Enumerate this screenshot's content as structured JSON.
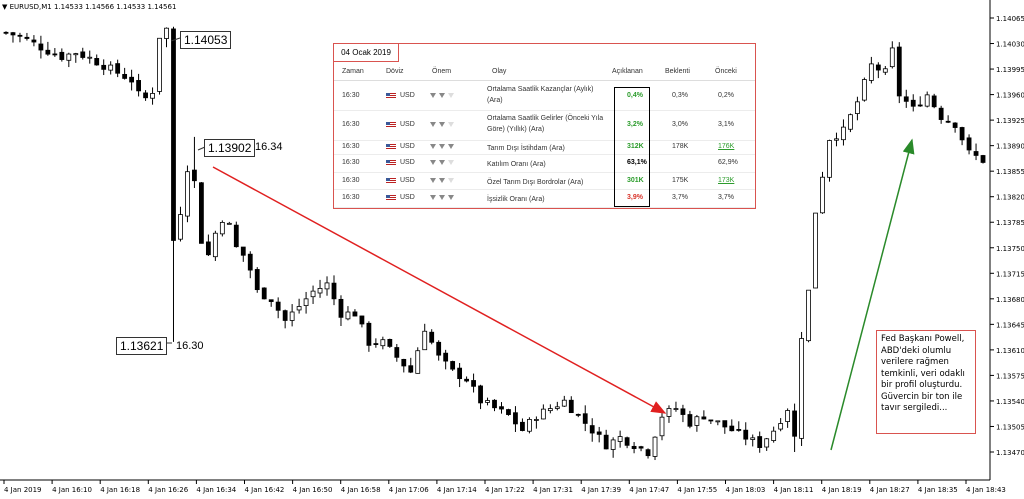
{
  "header": {
    "symbol": "EURUSD,M1",
    "ohlc": "1.14533 1.14566 1.14533 1.14561"
  },
  "annotations": {
    "high_price": "1.14053",
    "mid_price": "1.13902",
    "mid_time": "16.34",
    "low_price": "1.13621",
    "low_time": "16.30"
  },
  "calendar": {
    "date": "04 Ocak 2019",
    "headers": {
      "time": "Zaman",
      "currency": "Döviz",
      "importance": "Önem",
      "event": "Olay",
      "actual": "Açıklanan",
      "forecast": "Beklenti",
      "previous": "Önceki"
    },
    "rows": [
      {
        "time": "16:30",
        "currency": "USD",
        "importance": 2,
        "event": "Ortalama Saatlik Kazançlar (Aylık) (Ara)",
        "actual": "0,4%",
        "actual_style": "green",
        "forecast": "0,3%",
        "previous": "0,2%",
        "previous_style": "normal"
      },
      {
        "time": "16:30",
        "currency": "USD",
        "importance": 2,
        "event": "Ortalama Saatlik Gelirler (Önceki Yıla Göre) (Yıllık) (Ara)",
        "actual": "3,2%",
        "actual_style": "green",
        "forecast": "3,0%",
        "previous": "3,1%",
        "previous_style": "normal"
      },
      {
        "time": "16:30",
        "currency": "USD",
        "importance": 3,
        "event": "Tarım Dışı İstihdam (Ara)",
        "actual": "312K",
        "actual_style": "green",
        "forecast": "178K",
        "previous": "176K",
        "previous_style": "green-underline"
      },
      {
        "time": "16:30",
        "currency": "USD",
        "importance": 2,
        "event": "Katılım Oranı (Ara)",
        "actual": "63,1%",
        "actual_style": "black",
        "forecast": "",
        "previous": "62,9%",
        "previous_style": "normal"
      },
      {
        "time": "16:30",
        "currency": "USD",
        "importance": 2,
        "event": "Özel Tarım Dışı Bordrolar (Ara)",
        "actual": "301K",
        "actual_style": "green",
        "forecast": "175K",
        "previous": "173K",
        "previous_style": "green-underline"
      },
      {
        "time": "16:30",
        "currency": "USD",
        "importance": 3,
        "event": "İşsizlik Oranı (Ara)",
        "actual": "3,9%",
        "actual_style": "red",
        "forecast": "3,7%",
        "previous": "3,7%",
        "previous_style": "normal"
      }
    ]
  },
  "note": "Fed Başkanı Powell, ABD'deki olumlu verilere rağmen temkinli, veri odaklı bir profil oluşturdu. Güvercin bir ton ile tavır sergiledi...",
  "colors": {
    "down_arrow": "#e02020",
    "up_arrow": "#2a8a2a",
    "bull": "#ffffff",
    "bear": "#000000"
  },
  "chart_data": {
    "type": "candlestick",
    "ylim": [
      1.1344,
      1.1409
    ],
    "yticks": [
      "1.14065",
      "1.14030",
      "1.13995",
      "1.13960",
      "1.13925",
      "1.13890",
      "1.13855",
      "1.13820",
      "1.13785",
      "1.13750",
      "1.13715",
      "1.13680",
      "1.13645",
      "1.13610",
      "1.13575",
      "1.13540",
      "1.13505",
      "1.13470"
    ],
    "xticks": [
      "4 Jan 2019",
      "4 Jan 16:10",
      "4 Jan 16:18",
      "4 Jan 16:26",
      "4 Jan 16:34",
      "4 Jan 16:42",
      "4 Jan 16:50",
      "4 Jan 16:58",
      "4 Jan 17:06",
      "4 Jan 17:14",
      "4 Jan 17:22",
      "4 Jan 17:31",
      "4 Jan 17:39",
      "4 Jan 17:47",
      "4 Jan 17:55",
      "4 Jan 18:03",
      "4 Jan 18:11",
      "4 Jan 18:19",
      "4 Jan 18:27",
      "4 Jan 18:35",
      "4 Jan 18:43"
    ],
    "close_path": [
      [
        0,
        1.14045
      ],
      [
        2,
        1.1404
      ],
      [
        4,
        1.1403
      ],
      [
        6,
        1.1402
      ],
      [
        8,
        1.14012
      ],
      [
        10,
        1.14018
      ],
      [
        12,
        1.1401
      ],
      [
        14,
        1.14
      ],
      [
        16,
        1.1399
      ],
      [
        18,
        1.1398
      ],
      [
        19,
        1.1396
      ],
      [
        20,
        1.13955
      ],
      [
        21,
        1.13965
      ],
      [
        22,
        1.1404
      ],
      [
        23,
        1.1405
      ],
      [
        24,
        1.1376
      ],
      [
        25,
        1.138
      ],
      [
        26,
        1.1386
      ],
      [
        27,
        1.1384
      ],
      [
        28,
        1.1376
      ],
      [
        29,
        1.1374
      ],
      [
        30,
        1.1377
      ],
      [
        31,
        1.1379
      ],
      [
        32,
        1.1378
      ],
      [
        33,
        1.1375
      ],
      [
        34,
        1.1374
      ],
      [
        35,
        1.1372
      ],
      [
        36,
        1.1369
      ],
      [
        38,
        1.1368
      ],
      [
        40,
        1.1365
      ],
      [
        42,
        1.1367
      ],
      [
        44,
        1.1369
      ],
      [
        46,
        1.137
      ],
      [
        48,
        1.1366
      ],
      [
        50,
        1.1366
      ],
      [
        52,
        1.1362
      ],
      [
        54,
        1.1362
      ],
      [
        56,
        1.136
      ],
      [
        58,
        1.1358
      ],
      [
        60,
        1.1364
      ],
      [
        62,
        1.136
      ],
      [
        64,
        1.1358
      ],
      [
        66,
        1.1357
      ],
      [
        68,
        1.1354
      ],
      [
        70,
        1.1353
      ],
      [
        72,
        1.1352
      ],
      [
        74,
        1.135
      ],
      [
        76,
        1.1352
      ],
      [
        78,
        1.1353
      ],
      [
        80,
        1.1354
      ],
      [
        82,
        1.1352
      ],
      [
        84,
        1.135
      ],
      [
        86,
        1.1348
      ],
      [
        88,
        1.1349
      ],
      [
        90,
        1.1348
      ],
      [
        92,
        1.1347
      ],
      [
        94,
        1.1352
      ],
      [
        96,
        1.1353
      ],
      [
        98,
        1.1351
      ],
      [
        100,
        1.1352
      ],
      [
        102,
        1.1351
      ],
      [
        104,
        1.135
      ],
      [
        106,
        1.1349
      ],
      [
        108,
        1.1348
      ],
      [
        110,
        1.135
      ],
      [
        112,
        1.1353
      ],
      [
        113,
        1.1349
      ],
      [
        114,
        1.1363
      ],
      [
        115,
        1.1369
      ],
      [
        116,
        1.138
      ],
      [
        117,
        1.1385
      ],
      [
        118,
        1.139
      ],
      [
        120,
        1.1391
      ],
      [
        122,
        1.1395
      ],
      [
        124,
        1.14
      ],
      [
        126,
        1.1399
      ],
      [
        127,
        1.1402
      ],
      [
        128,
        1.1396
      ],
      [
        130,
        1.1394
      ],
      [
        132,
        1.1396
      ],
      [
        134,
        1.1393
      ],
      [
        136,
        1.1392
      ],
      [
        138,
        1.1388
      ],
      [
        140,
        1.1387
      ]
    ],
    "series_count": 141
  }
}
